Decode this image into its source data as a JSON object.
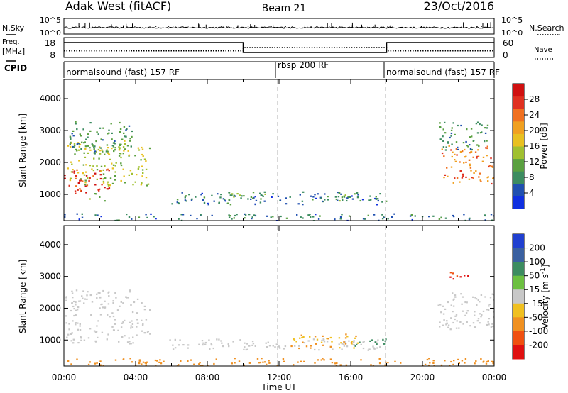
{
  "header": {
    "station": "Adak West (fitACF)",
    "beam": "Beam 21",
    "date": "23/Oct/2016"
  },
  "strip_labels": {
    "nsky": "N.Sky",
    "nsearch": "N.Search",
    "freq": "Freq.",
    "freq_unit": "[MHz]",
    "nave": "Nave",
    "cpid": "CPID"
  },
  "colors": {
    "noise_line": "#000000",
    "range_dash": "#b0b0b0"
  },
  "chart_data": [
    {
      "type": "line",
      "name": "noise_strip",
      "ylabel_left": "N.Sky",
      "ylabel_right": "N.Search",
      "ylim": [
        "10^0",
        "10^5"
      ],
      "left_ticks": [
        "10^5",
        "10^0"
      ],
      "right_ticks": [
        "10^5",
        "10^0"
      ]
    },
    {
      "type": "line",
      "name": "freq_nave_strip",
      "left_ticks": [
        "18",
        "8"
      ],
      "right_ticks": [
        "60",
        "0"
      ],
      "series": [
        {
          "name": "Freq.",
          "x_hours": [
            0,
            10,
            10,
            18,
            18,
            24
          ],
          "values": [
            15.5,
            15.5,
            10.5,
            10.5,
            15.5,
            15.5
          ]
        },
        {
          "name": "Nave",
          "x_hours": [
            0,
            10,
            10,
            18,
            18,
            24
          ],
          "values": [
            20,
            20,
            30,
            30,
            20,
            20
          ]
        }
      ]
    },
    {
      "type": "table",
      "name": "cpid_strip",
      "segments": [
        {
          "label": "normalsound (fast) 157 RF",
          "start_hour": 0,
          "end_hour": 12
        },
        {
          "label": "rbsp 200 RF",
          "start_hour": 12,
          "end_hour": 18
        },
        {
          "label": "normalsound (fast) 157 RF",
          "start_hour": 18,
          "end_hour": 24
        }
      ]
    },
    {
      "type": "heatmap",
      "name": "power",
      "xlabel": "",
      "ylabel": "Slant Range [km]",
      "colorbar_label": "Power [dB]",
      "colorbar_ticks": [
        "4",
        "8",
        "12",
        "16",
        "20",
        "24",
        "28"
      ],
      "colorbar_colors": [
        "#1030e0",
        "#2050b0",
        "#3c8c60",
        "#5aa040",
        "#a0c030",
        "#e8c020",
        "#f0a020",
        "#f07020",
        "#e03020",
        "#d01010"
      ],
      "y_ticks": [
        1000,
        2000,
        3000,
        4000
      ],
      "ylim": [
        180,
        4600
      ],
      "xlim_hours": [
        0,
        24
      ],
      "regions": [
        {
          "t0": 0.0,
          "t1": 2.6,
          "r0": 1050,
          "r1": 1850,
          "value": 26
        },
        {
          "t0": 0.1,
          "t1": 4.8,
          "r0": 1300,
          "r1": 2700,
          "value": 14
        },
        {
          "t0": 0.3,
          "t1": 3.8,
          "r0": 2300,
          "r1": 3300,
          "value": 8
        },
        {
          "t0": 1.3,
          "t1": 2.3,
          "r0": 800,
          "r1": 1050,
          "value": 12
        },
        {
          "t0": 5.8,
          "t1": 18.0,
          "r0": 700,
          "r1": 1100,
          "value": 6
        },
        {
          "t0": 8.6,
          "t1": 11.2,
          "r0": 850,
          "r1": 1150,
          "value": 10
        },
        {
          "t0": 14.5,
          "t1": 17.5,
          "r0": 800,
          "r1": 1050,
          "value": 9
        },
        {
          "t0": 21.0,
          "t1": 24.0,
          "r0": 1350,
          "r1": 2550,
          "value": 22
        },
        {
          "t0": 20.8,
          "t1": 23.6,
          "r0": 2400,
          "r1": 3300,
          "value": 8
        },
        {
          "t0": 0.0,
          "t1": 24.0,
          "r0": 200,
          "r1": 420,
          "value": 6
        }
      ]
    },
    {
      "type": "heatmap",
      "name": "velocity",
      "xlabel": "Time UT",
      "ylabel": "Slant Range [km]",
      "colorbar_label": "Velocity [m s^-1]",
      "colorbar_ticks": [
        "200",
        "100",
        "50",
        "15",
        "-15",
        "-50",
        "-100",
        "-200"
      ],
      "colorbar_colors": [
        "#2040d0",
        "#3a60a0",
        "#3c8c60",
        "#6cc040",
        "#c8c8c8",
        "#f0c020",
        "#f09020",
        "#f05010",
        "#e01010"
      ],
      "x_ticks": [
        "00:00",
        "04:00",
        "08:00",
        "12:00",
        "16:00",
        "20:00",
        "00:00"
      ],
      "y_ticks": [
        1000,
        2000,
        3000,
        4000
      ],
      "ylim": [
        180,
        4600
      ],
      "xlim_hours": [
        0,
        24
      ],
      "regions": [
        {
          "t0": 0.0,
          "t1": 4.8,
          "r0": 900,
          "r1": 2600,
          "value": 0
        },
        {
          "t0": 5.8,
          "t1": 18.0,
          "r0": 700,
          "r1": 1050,
          "value": 0
        },
        {
          "t0": 12.5,
          "t1": 16.5,
          "r0": 750,
          "r1": 1200,
          "value": -30
        },
        {
          "t0": 16.2,
          "t1": 18.0,
          "r0": 800,
          "r1": 1050,
          "value": 60
        },
        {
          "t0": 20.8,
          "t1": 24.0,
          "r0": 1350,
          "r1": 2500,
          "value": 0
        },
        {
          "t0": 21.5,
          "t1": 23.0,
          "r0": 2900,
          "r1": 3150,
          "value": -150
        },
        {
          "t0": 0.0,
          "t1": 24.0,
          "r0": 200,
          "r1": 450,
          "value": -40
        }
      ]
    }
  ]
}
